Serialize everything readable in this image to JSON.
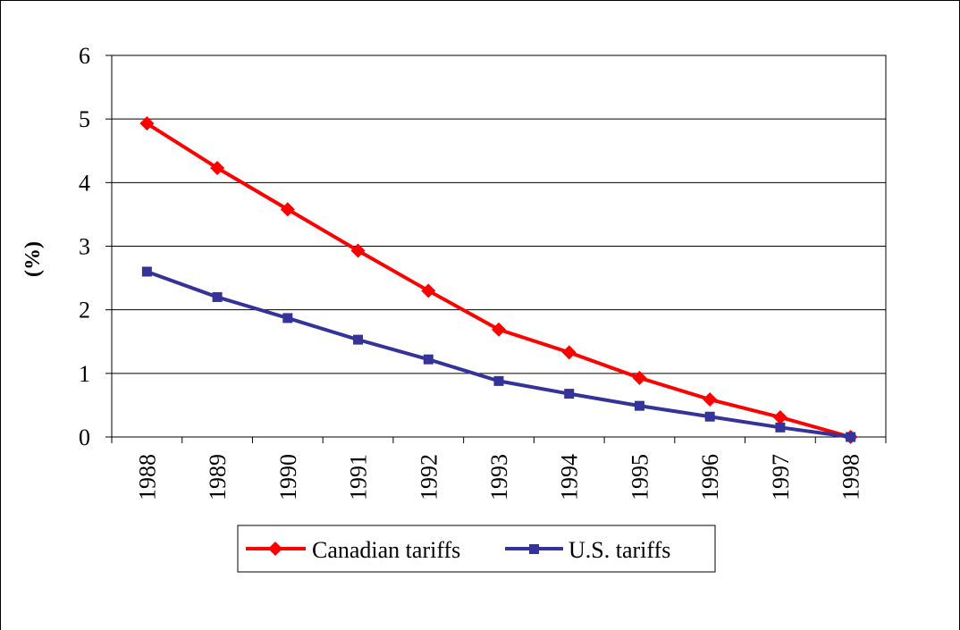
{
  "chart_data": {
    "type": "line",
    "x": [
      "1988",
      "1989",
      "1990",
      "1991",
      "1992",
      "1993",
      "1994",
      "1995",
      "1996",
      "1997",
      "1998"
    ],
    "series": [
      {
        "name": "Canadian tariffs",
        "color": "#ff0000",
        "marker": "diamond",
        "values": [
          4.93,
          4.23,
          3.58,
          2.93,
          2.3,
          1.69,
          1.33,
          0.93,
          0.59,
          0.31,
          0.0
        ]
      },
      {
        "name": "U.S. tariffs",
        "color": "#333399",
        "marker": "square",
        "values": [
          2.6,
          2.2,
          1.87,
          1.53,
          1.22,
          0.88,
          0.68,
          0.49,
          0.32,
          0.15,
          0.0
        ]
      }
    ],
    "ylabel": "(%)",
    "ylim": [
      0,
      6
    ],
    "yticks": [
      "0",
      "1",
      "2",
      "3",
      "4",
      "5",
      "6"
    ],
    "grid": true,
    "legend_position": "bottom"
  }
}
